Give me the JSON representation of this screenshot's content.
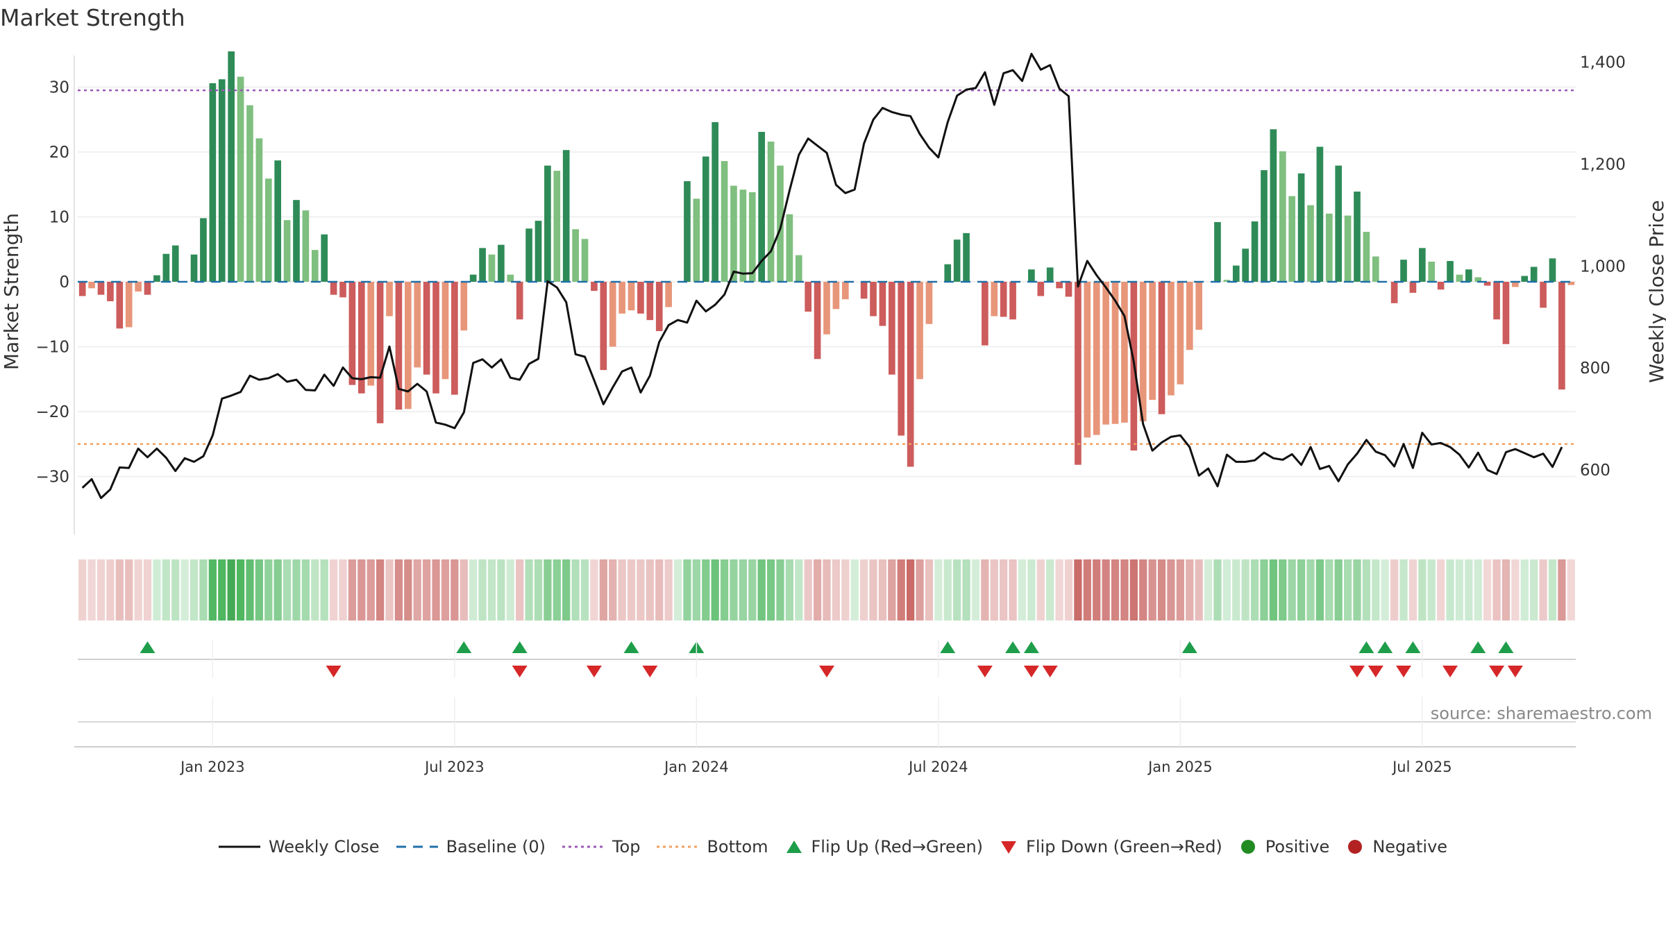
{
  "title": "Market Strength",
  "source": "source: sharemaestro.com",
  "chart_data": {
    "type": "bar+line",
    "title": "Market Strength",
    "ylabel_left": "Market Strength",
    "ylabel_right": "Weekly Close Price",
    "left_ylim": [
      -40,
      37
    ],
    "right_ylim": [
      460,
      1440
    ],
    "left_ticks": [
      30,
      20,
      10,
      0,
      -10,
      -20,
      -30
    ],
    "left_tick_labels": [
      "30",
      "20",
      "10",
      "0",
      "−10",
      "−20",
      "−30"
    ],
    "right_ticks": [
      1400,
      1200,
      1000,
      800,
      600
    ],
    "right_tick_labels": [
      "1,400",
      "1,200",
      "1,000",
      "800",
      "600"
    ],
    "x_ticks": [
      {
        "label": "Jan 2023",
        "week": 14
      },
      {
        "label": "Jul 2023",
        "week": 40
      },
      {
        "label": "Jan 2024",
        "week": 66
      },
      {
        "label": "Jul 2024",
        "week": 92
      },
      {
        "label": "Jan 2025",
        "week": 118
      },
      {
        "label": "Jul 2025",
        "week": 144
      }
    ],
    "top_line": 29.5,
    "bottom_line": -25,
    "baseline": 0,
    "strength": [
      -2.2,
      -1,
      -2,
      -3,
      -7.2,
      -7,
      -1.5,
      -2,
      1,
      4.3,
      5.6,
      0,
      4.2,
      9.8,
      30.6,
      31.2,
      35.5,
      31.6,
      27.2,
      22.1,
      15.9,
      18.7,
      9.5,
      12.6,
      11,
      4.9,
      7.3,
      -2,
      -2.4,
      -15.9,
      -17.2,
      -16,
      -21.8,
      -5.3,
      -19.7,
      -19.6,
      -13.2,
      -14.3,
      -17.2,
      -15,
      -17.4,
      -7.5,
      1.1,
      5.2,
      4.2,
      5.7,
      1.1,
      -5.8,
      8.2,
      9.4,
      17.9,
      17.1,
      20.3,
      8.1,
      6.6,
      -1.4,
      -13.6,
      -10,
      -4.9,
      -4.4,
      -4.9,
      -5.9,
      -7.6,
      -3.9,
      0,
      15.5,
      12.8,
      19.3,
      24.6,
      18.6,
      14.8,
      14.2,
      13.8,
      23.1,
      21.6,
      17.9,
      10.4,
      4.1,
      -4.6,
      -11.9,
      -8.1,
      -4.2,
      -2.7,
      0,
      -2.6,
      -5.3,
      -6.8,
      -14.3,
      -23.7,
      -28.5,
      -15,
      -6.5,
      0,
      2.7,
      6.5,
      7.5,
      0,
      -9.8,
      -5.3,
      -5.4,
      -5.8,
      0,
      1.9,
      -2.2,
      2.2,
      -1,
      -2.3,
      -28.2,
      -24,
      -23.6,
      -22,
      -21.9,
      -21.7,
      -26,
      -21.5,
      -18.2,
      -20.4,
      -17.5,
      -15.8,
      -10.5,
      -7.4,
      0,
      9.2,
      0.3,
      2.5,
      5.1,
      9.3,
      17.2,
      23.5,
      20.1,
      13.2,
      16.7,
      11.8,
      20.8,
      10.5,
      17.9,
      10.2,
      13.9,
      7.7,
      3.9,
      0,
      -3.3,
      3.4,
      -1.7,
      5.2,
      3.1,
      -1.2,
      3.2,
      1.1,
      1.9,
      0.7,
      -0.6,
      -5.8,
      -9.6,
      -0.8,
      0.9,
      2.3,
      -4,
      3.6,
      -16.6,
      -0.5
    ],
    "weekly_close": [
      565,
      582,
      545,
      562,
      605,
      604,
      642,
      625,
      642,
      624,
      598,
      623,
      616,
      627,
      668,
      740,
      746,
      753,
      785,
      777,
      780,
      788,
      773,
      777,
      757,
      756,
      787,
      765,
      801,
      780,
      778,
      782,
      781,
      842,
      759,
      754,
      769,
      754,
      693,
      689,
      682,
      713,
      810,
      817,
      801,
      817,
      781,
      777,
      808,
      818,
      970,
      958,
      929,
      827,
      822,
      776,
      729,
      762,
      793,
      801,
      752,
      785,
      851,
      884,
      894,
      889,
      932,
      911,
      924,
      944,
      989,
      985,
      986,
      1010,
      1029,
      1073,
      1148,
      1218,
      1250,
      1236,
      1222,
      1159,
      1143,
      1150,
      1240,
      1287,
      1310,
      1302,
      1297,
      1294,
      1259,
      1232,
      1213,
      1282,
      1334,
      1346,
      1349,
      1380,
      1316,
      1378,
      1384,
      1363,
      1416,
      1385,
      1394,
      1348,
      1333,
      960,
      1010,
      982,
      958,
      932,
      902,
      812,
      690,
      638,
      654,
      665,
      668,
      645,
      589,
      603,
      568,
      630,
      616,
      616,
      619,
      634,
      623,
      620,
      631,
      610,
      645,
      602,
      608,
      578,
      611,
      632,
      659,
      636,
      629,
      607,
      651,
      604,
      673,
      650,
      653,
      645,
      630,
      605,
      634,
      600,
      592,
      635,
      641,
      633,
      625,
      632,
      606,
      645
    ],
    "flip_up": [
      7,
      41,
      47,
      59,
      66,
      93,
      100,
      102,
      119,
      138,
      140,
      143,
      150,
      153
    ],
    "flip_down": [
      27,
      47,
      55,
      61,
      80,
      97,
      102,
      104,
      137,
      139,
      142,
      147,
      152,
      154
    ],
    "series_colors": {
      "weekly_close": "#111111",
      "baseline": "#1f6fa8",
      "top": "#9b59b6",
      "bottom": "#f0a060",
      "pos_strong": "#2e8b57",
      "pos_light": "#7fbf7f",
      "neg_strong": "#cd5c5c",
      "neg_light": "#e8967a",
      "flip_up": "#1e9e4a",
      "flip_down": "#d62728"
    }
  },
  "legend": [
    {
      "name": "legend-weekly-close",
      "label": "Weekly Close",
      "kind": "line-solid",
      "color": "#111111"
    },
    {
      "name": "legend-baseline",
      "label": "Baseline (0)",
      "kind": "line-dashed",
      "color": "#1f6fa8"
    },
    {
      "name": "legend-top",
      "label": "Top",
      "kind": "line-dotted",
      "color": "#9b59b6"
    },
    {
      "name": "legend-bottom",
      "label": "Bottom",
      "kind": "line-dotted",
      "color": "#f0a060"
    },
    {
      "name": "legend-flip-up",
      "label": "Flip Up (Red→Green)",
      "kind": "tri-up",
      "color": "#1e9e4a"
    },
    {
      "name": "legend-flip-down",
      "label": "Flip Down (Green→Red)",
      "kind": "tri-down",
      "color": "#d62728"
    },
    {
      "name": "legend-positive",
      "label": "Positive",
      "kind": "dot",
      "color": "#228b22"
    },
    {
      "name": "legend-negative",
      "label": "Negative",
      "kind": "dot",
      "color": "#b22222"
    }
  ]
}
